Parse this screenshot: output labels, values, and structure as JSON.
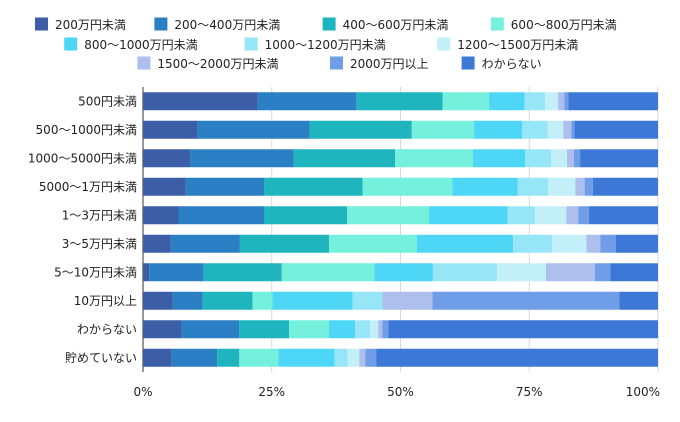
{
  "chart_data": {
    "type": "bar",
    "orientation": "horizontal",
    "stacked": true,
    "normalized": true,
    "title": "",
    "xlabel": "",
    "ylabel": "",
    "xlim": [
      0,
      100
    ],
    "x_ticks": [
      "0%",
      "25%",
      "50%",
      "75%",
      "100%"
    ],
    "grid": true,
    "legend_position": "top",
    "categories": [
      "500円未満",
      "500〜1000円未満",
      "1000〜5000円未満",
      "5000〜1万円未満",
      "1〜3万円未満",
      "3〜5万円未満",
      "5〜10万円未満",
      "10万円以上",
      "わからない",
      "貯めていない"
    ],
    "series": [
      {
        "name": "200万円未満",
        "color": "#3b5ea7",
        "values": [
          22.3,
          10.6,
          9.0,
          8.3,
          6.9,
          5.4,
          1.2,
          5.8,
          7.5,
          5.6
        ]
      },
      {
        "name": "200〜400万円未満",
        "color": "#2b7fc4",
        "values": [
          19.2,
          21.8,
          19.8,
          15.2,
          16.7,
          13.4,
          10.6,
          5.8,
          11.3,
          8.9
        ]
      },
      {
        "name": "400〜600万円未満",
        "color": "#1fb5bf",
        "values": [
          16.7,
          19.8,
          19.4,
          19.0,
          16.1,
          17.3,
          15.2,
          9.7,
          9.7,
          4.3
        ]
      },
      {
        "name": "600〜800万円未満",
        "color": "#74f0dc",
        "values": [
          9.0,
          12.1,
          14.9,
          17.4,
          15.9,
          17.0,
          18.0,
          3.9,
          7.8,
          7.6
        ]
      },
      {
        "name": "800〜1000万円未満",
        "color": "#4dd6f5",
        "values": [
          6.9,
          9.3,
          10.0,
          12.6,
          15.3,
          18.7,
          11.4,
          15.6,
          5.1,
          11.0
        ]
      },
      {
        "name": "1000〜1200万円未満",
        "color": "#96e6f7",
        "values": [
          4.0,
          5.0,
          5.0,
          5.9,
          5.3,
          7.6,
          12.5,
          5.8,
          2.9,
          2.5
        ]
      },
      {
        "name": "1200〜1500万円未満",
        "color": "#c3f0f8",
        "values": [
          2.5,
          3.0,
          3.0,
          5.3,
          6.1,
          6.6,
          9.5,
          0.0,
          1.6,
          2.3
        ]
      },
      {
        "name": "1500〜2000万円未満",
        "color": "#aebfee",
        "values": [
          1.2,
          1.6,
          1.3,
          1.8,
          2.3,
          2.7,
          9.5,
          9.7,
          0.8,
          1.2
        ]
      },
      {
        "name": "2000万円以上",
        "color": "#6f9de8",
        "values": [
          0.8,
          0.6,
          1.2,
          1.6,
          2.1,
          3.0,
          3.0,
          36.4,
          1.2,
          2.1
        ]
      },
      {
        "name": "わからない",
        "color": "#3d78d6",
        "values": [
          17.4,
          16.2,
          14.9,
          12.6,
          13.4,
          8.2,
          9.3,
          7.5,
          52.6,
          55.0
        ]
      }
    ]
  }
}
